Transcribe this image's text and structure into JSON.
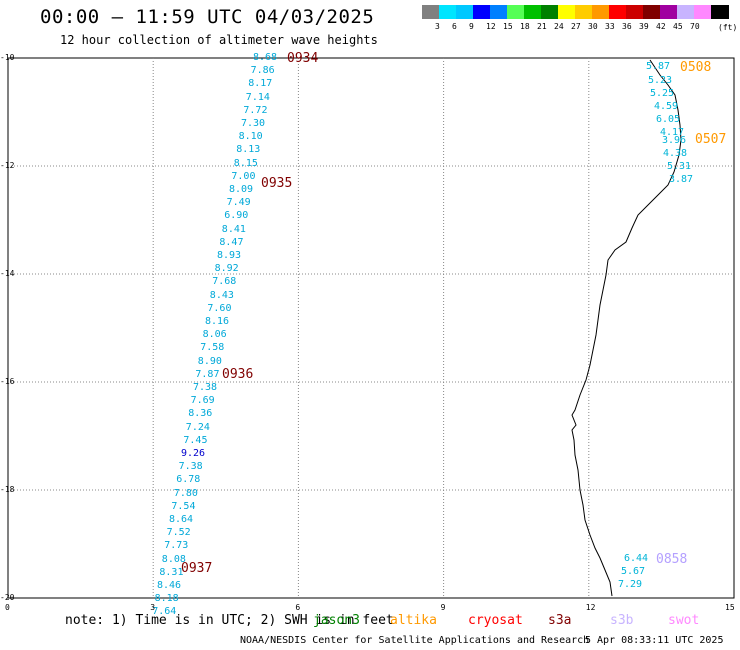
{
  "title": "00:00 – 11:59 UTC 04/03/2025",
  "subtitle": "12 hour collection of altimeter wave heights",
  "colorscale": {
    "unit": "(ft)",
    "colors": [
      "#808080",
      "#00e5ff",
      "#00c8ff",
      "#0000ff",
      "#0080ff",
      "#55ff55",
      "#00c000",
      "#008000",
      "#ffff00",
      "#ffcc00",
      "#ff9900",
      "#ff0000",
      "#cc0000",
      "#800000",
      "#a000a0",
      "#c8b4ff",
      "#ff88ff",
      "#000000"
    ],
    "labels": [
      "3",
      "6",
      "9",
      "12",
      "15",
      "18",
      "21",
      "24",
      "27",
      "30",
      "33",
      "36",
      "39",
      "42",
      "45",
      "70"
    ]
  },
  "axes": {
    "x_ticks": [
      "0",
      "3",
      "6",
      "9",
      "12",
      "15"
    ],
    "y_ticks": [
      "-10",
      "-12",
      "-14",
      "-16",
      "-18",
      "-20"
    ]
  },
  "tracks": [
    {
      "id": "cryosat",
      "color": "#00a8d8",
      "values": [
        "8.68",
        "7.86",
        "8.17",
        "7.14",
        "7.72",
        "7.30",
        "8.10",
        "8.13",
        "8.15",
        "7.00",
        "8.09",
        "7.49",
        "6.90",
        "8.41",
        "8.47",
        "8.93",
        "8.92",
        "7.68",
        "8.43",
        "7.60",
        "8.16",
        "8.06",
        "7.58",
        "8.90",
        "7.87",
        "7.38",
        "7.69",
        "8.36",
        "7.24",
        "7.45",
        "9.26",
        "7.38",
        "6.78",
        "7.80",
        "7.54",
        "8.64",
        "7.52",
        "7.73",
        "8.08",
        "8.31",
        "8.46",
        "8.18",
        "7.64"
      ],
      "highlight_value": "9.26",
      "highlight_color": "#0000cc",
      "times": [
        "0934",
        "0935",
        "0936",
        "0937"
      ],
      "time_color": "#800000"
    },
    {
      "id": "altika_0508",
      "color": "#00b4d8",
      "values": [
        "5.87",
        "5.23",
        "5.25",
        "4.59",
        "6.05",
        "4.17",
        "3.96",
        "4.38",
        "5.31",
        "3.87"
      ],
      "times": [
        "0508",
        "0507"
      ],
      "time_color": "#ff9900"
    },
    {
      "id": "s3b_0858",
      "color": "#00b4d8",
      "values": [
        "6.44",
        "5.67",
        "7.29"
      ],
      "times": [
        "0858"
      ],
      "time_color": "#b4a0ff"
    }
  ],
  "footer": {
    "note": "note: 1) Time is in UTC; 2) SWH is in feet",
    "legend": [
      {
        "name": "jason3",
        "color": "#008000"
      },
      {
        "name": "altika",
        "color": "#ff9900"
      },
      {
        "name": "cryosat",
        "color": "#ff0000"
      },
      {
        "name": "s3a",
        "color": "#800000"
      },
      {
        "name": "s3b",
        "color": "#c8b4ff"
      },
      {
        "name": "swot",
        "color": "#ff88ff"
      }
    ],
    "credit": "NOAA/NESDIS Center for Satellite Applications and Research",
    "timestamp": "5 Apr 08:33:11 UTC 2025"
  }
}
